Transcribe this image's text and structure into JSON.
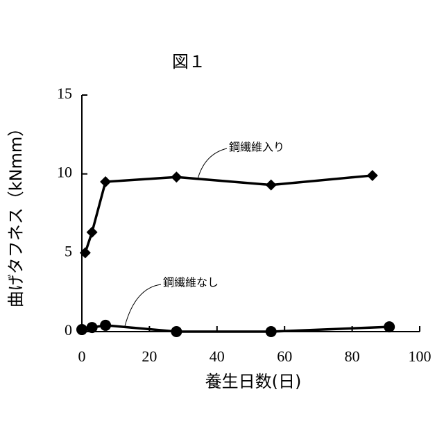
{
  "chart_data": {
    "type": "line",
    "title": "図１",
    "x_label": "養生日数(日)",
    "y_label": "曲げタフネス（kNmm）",
    "xlim": [
      0,
      100
    ],
    "xticks": [
      0,
      20,
      40,
      60,
      80,
      100
    ],
    "ylim": [
      0,
      15
    ],
    "yticks": [
      0,
      5,
      10,
      15
    ],
    "series": [
      {
        "name": "鋼繊維入り",
        "color": "#000000",
        "marker": "diamond",
        "x": [
          1,
          3,
          7,
          28,
          56,
          86
        ],
        "values": [
          5,
          6.3,
          9.5,
          9.8,
          9.3,
          9.9
        ]
      },
      {
        "name": "鋼繊維なし",
        "color": "#000000",
        "marker": "circle",
        "x": [
          0,
          3,
          7,
          28,
          56,
          91
        ],
        "values": [
          0.13,
          0.26,
          0.4,
          0,
          0,
          0.3
        ]
      }
    ]
  }
}
